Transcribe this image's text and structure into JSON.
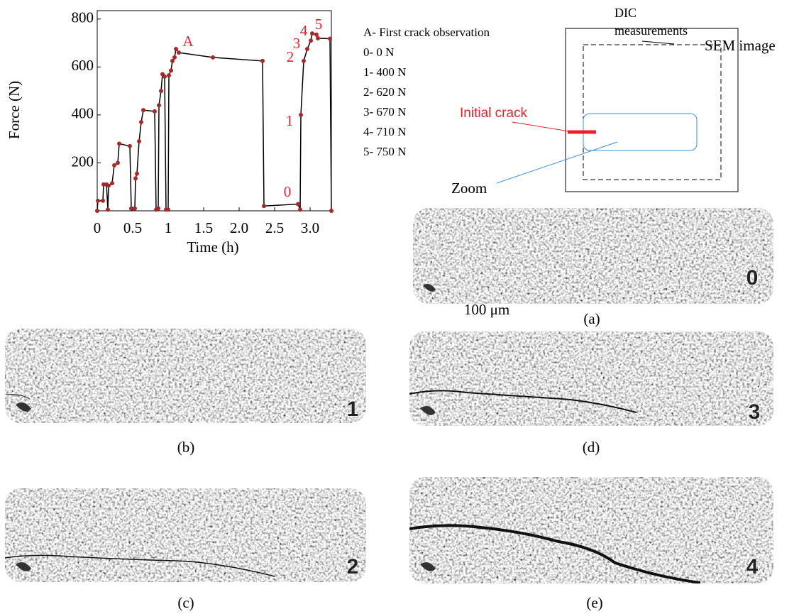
{
  "chart_data": {
    "type": "line",
    "xlabel": "Time (h)",
    "ylabel": "Force (N)",
    "color": "#000000",
    "marker_color": "#a52a2a",
    "x": [
      0,
      0.01,
      0.08,
      0.09,
      0.13,
      0.15,
      0.16,
      0.21,
      0.24,
      0.29,
      0.31,
      0.46,
      0.48,
      0.53,
      0.54,
      0.56,
      0.59,
      0.62,
      0.65,
      0.81,
      0.83,
      0.86,
      0.87,
      0.9,
      0.92,
      0.95,
      0.97,
      1.0,
      1.01,
      1.04,
      1.06,
      1.09,
      1.11,
      1.15,
      1.63,
      2.33,
      2.35,
      2.83,
      2.86,
      2.87,
      2.91,
      2.96,
      3.01,
      3.03,
      3.09,
      3.11,
      3.28,
      3.3
    ],
    "values": [
      0,
      42,
      42,
      110,
      110,
      5,
      105,
      115,
      190,
      200,
      280,
      270,
      10,
      10,
      135,
      155,
      290,
      370,
      420,
      415,
      5,
      10,
      440,
      500,
      570,
      560,
      5,
      5,
      565,
      585,
      625,
      640,
      675,
      660,
      640,
      625,
      20,
      28,
      5,
      400,
      625,
      675,
      710,
      740,
      735,
      720,
      718,
      0
    ],
    "xlim": [
      0,
      3.3
    ],
    "ylim": [
      0,
      835
    ],
    "xticks": [
      0,
      0.5,
      1,
      1.5,
      {
        "value": 2,
        "label": "2.0"
      },
      2.5,
      {
        "value": 3,
        "label": "3.0"
      }
    ],
    "yticks": [
      200,
      400,
      600,
      800
    ],
    "annotations": [
      "A",
      "0",
      "1",
      "2",
      "3",
      "4",
      "5"
    ]
  },
  "legend_notes": [
    "A- First crack observation",
    "0- 0 N",
    "1- 400 N",
    "2- 620 N",
    "3- 670 N",
    "4- 710 N",
    "5- 750 N"
  ],
  "schematic": {
    "dic": "DIC measurements",
    "sem": "SEM image",
    "crack": "Initial crack",
    "zoom": "Zoom"
  },
  "scale_bar": "100 μm",
  "panels": [
    {
      "label": "0",
      "caption": "(a)"
    },
    {
      "label": "1",
      "caption": "(b)"
    },
    {
      "label": "3",
      "caption": "(d)"
    },
    {
      "label": "2",
      "caption": "(c)"
    },
    {
      "label": "4",
      "caption": "(e)"
    }
  ]
}
